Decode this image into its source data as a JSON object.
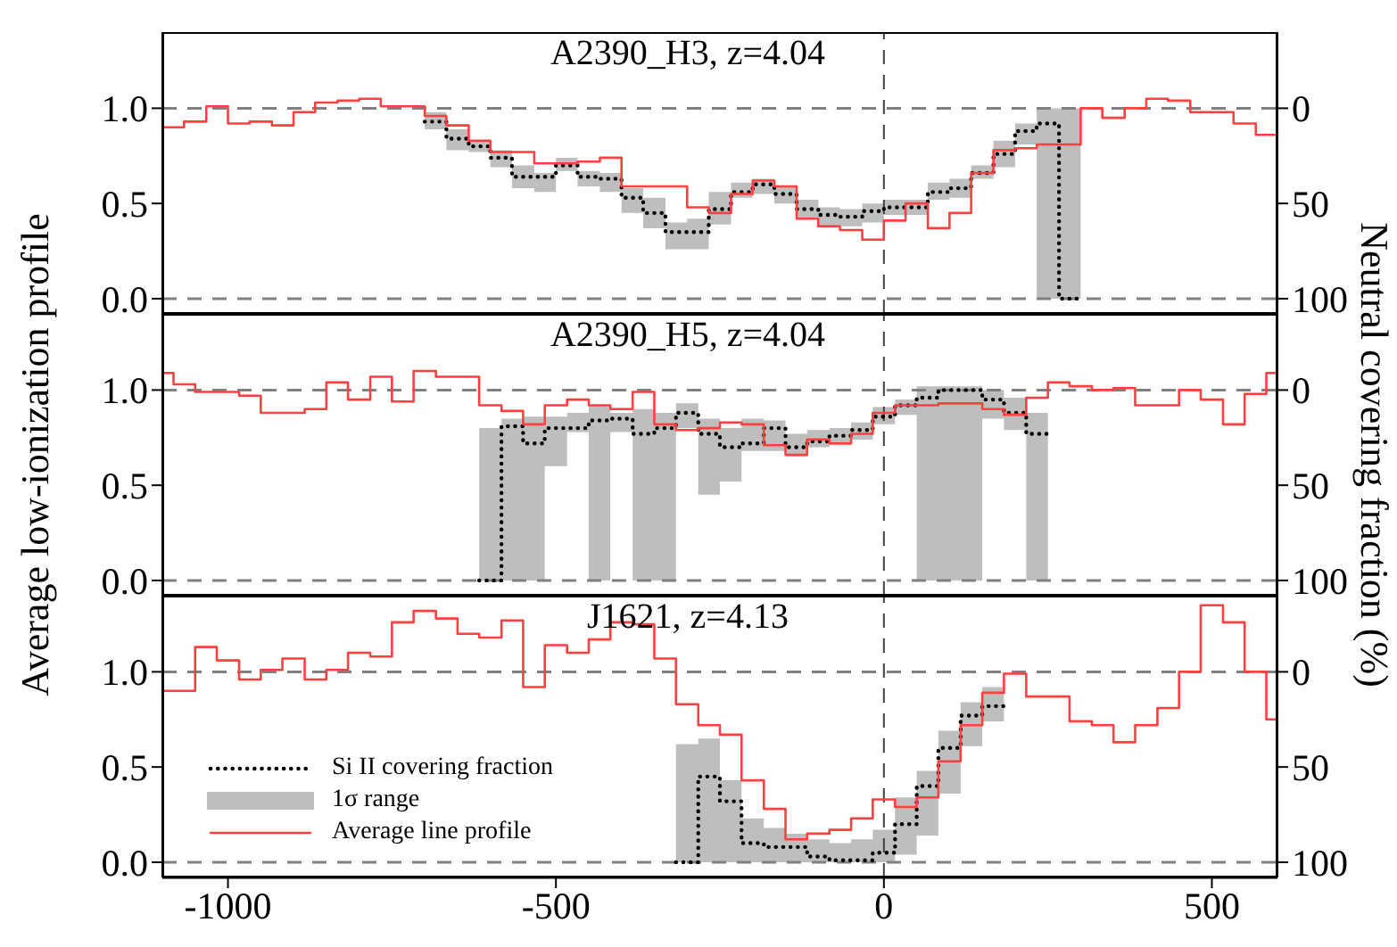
{
  "chart_data": [
    {
      "type": "step",
      "title": "A2390_H3, z=4.04",
      "tick_labels": "y",
      "xlim": [
        -1100,
        600
      ],
      "xticks": [
        -1000,
        -500,
        0,
        500
      ],
      "ylim": [
        -0.08,
        1.4
      ],
      "yticks": [
        {
          "value": 0,
          "label": "0.0"
        },
        {
          "value": 0.5,
          "label": "0.5"
        },
        {
          "value": 1,
          "label": "1.0"
        }
      ],
      "y2lim": [
        108,
        -40
      ],
      "y2ticks": [
        0,
        50,
        100
      ],
      "ref_lines": [
        {
          "axis": "y",
          "value": 0,
          "color": "#808080",
          "line_style": "dashed"
        },
        {
          "axis": "y",
          "value": 1,
          "color": "#808080",
          "line_style": "dashed"
        },
        {
          "axis": "x",
          "value": 0,
          "color": "#404040",
          "line_style": "dashed"
        }
      ],
      "x": [
        -1100,
        -1067,
        -1033,
        -1000,
        -967,
        -933,
        -900,
        -867,
        -833,
        -800,
        -767,
        -733,
        -700,
        -667,
        -633,
        -600,
        -567,
        -533,
        -500,
        -467,
        -433,
        -400,
        -367,
        -333,
        -300,
        -267,
        -233,
        -200,
        -167,
        -133,
        -100,
        -67,
        -33,
        0,
        33,
        67,
        100,
        133,
        167,
        200,
        233,
        267,
        300,
        333,
        367,
        400,
        433,
        467,
        500,
        533,
        567,
        600
      ],
      "series": [
        {
          "color": "#000000",
          "line_style": "dotted",
          "values": [
            null,
            null,
            null,
            null,
            null,
            null,
            null,
            null,
            null,
            null,
            null,
            null,
            0.93,
            0.84,
            0.8,
            0.74,
            0.64,
            0.64,
            0.7,
            0.64,
            0.63,
            0.53,
            0.45,
            0.35,
            0.35,
            0.47,
            0.56,
            0.6,
            0.55,
            0.47,
            0.44,
            0.43,
            0.46,
            0.48,
            0.48,
            0.56,
            0.58,
            0.66,
            0.76,
            0.88,
            0.92,
            0.0,
            0.0,
            null,
            null,
            null,
            null,
            null,
            null,
            null,
            null,
            null
          ],
          "lower": [
            null,
            null,
            null,
            null,
            null,
            null,
            null,
            null,
            null,
            null,
            null,
            null,
            0.89,
            0.78,
            0.77,
            0.69,
            0.58,
            0.56,
            0.67,
            0.59,
            0.56,
            0.45,
            0.37,
            0.26,
            0.26,
            0.39,
            0.53,
            0.55,
            0.5,
            0.42,
            0.38,
            0.38,
            0.4,
            0.44,
            0.44,
            0.52,
            0.53,
            0.63,
            0.69,
            0.81,
            0.0,
            0.0,
            0.0,
            null,
            null,
            null,
            null,
            null,
            null,
            null,
            null,
            null
          ],
          "upper": [
            null,
            null,
            null,
            null,
            null,
            null,
            null,
            null,
            null,
            null,
            null,
            null,
            0.98,
            0.89,
            0.83,
            0.78,
            0.7,
            0.66,
            0.74,
            0.67,
            0.66,
            0.58,
            0.53,
            0.4,
            0.42,
            0.56,
            0.61,
            0.63,
            0.59,
            0.52,
            0.48,
            0.47,
            0.5,
            0.52,
            0.52,
            0.61,
            0.63,
            0.7,
            0.83,
            0.92,
            1.0,
            1.0,
            1.0,
            null,
            null,
            null,
            null,
            null,
            null,
            null,
            null,
            null
          ]
        },
        {
          "color": "#ff4040",
          "line_style": "solid",
          "values": [
            0.9,
            0.93,
            1.01,
            0.92,
            0.93,
            0.91,
            0.98,
            1.03,
            1.04,
            1.05,
            1.01,
            1.01,
            0.96,
            0.91,
            0.83,
            0.77,
            0.77,
            0.71,
            0.71,
            0.72,
            0.74,
            0.59,
            0.59,
            0.59,
            0.48,
            0.45,
            0.55,
            0.62,
            0.59,
            0.42,
            0.38,
            0.36,
            0.31,
            0.41,
            0.5,
            0.37,
            0.45,
            0.66,
            0.78,
            0.79,
            0.81,
            0.81,
            1.0,
            0.95,
            1.0,
            1.05,
            1.04,
            0.98,
            0.98,
            0.92,
            0.86,
            0.86
          ]
        }
      ]
    },
    {
      "type": "step",
      "title": "A2390_H5, z=4.04",
      "ylabel": "Average low-ionization profile",
      "y2label": "Neutral covering fraction (%)",
      "tick_labels": "y",
      "xlim": [
        -1100,
        600
      ],
      "xticks": [
        -1000,
        -500,
        0,
        500
      ],
      "ylim": [
        -0.08,
        1.4
      ],
      "yticks": [
        {
          "value": 0,
          "label": "0.0"
        },
        {
          "value": 0.5,
          "label": "0.5"
        },
        {
          "value": 1,
          "label": "1.0"
        }
      ],
      "y2lim": [
        108,
        -40
      ],
      "y2ticks": [
        0,
        50,
        100
      ],
      "ref_lines": [
        {
          "axis": "y",
          "value": 0,
          "color": "#808080",
          "line_style": "dashed"
        },
        {
          "axis": "y",
          "value": 1,
          "color": "#808080",
          "line_style": "dashed"
        },
        {
          "axis": "x",
          "value": 0,
          "color": "#404040",
          "line_style": "dashed"
        }
      ],
      "x": [
        -1100,
        -1083,
        -1050,
        -1017,
        -983,
        -950,
        -917,
        -883,
        -850,
        -817,
        -783,
        -750,
        -717,
        -683,
        -650,
        -617,
        -583,
        -550,
        -517,
        -483,
        -450,
        -417,
        -383,
        -350,
        -317,
        -283,
        -250,
        -217,
        -183,
        -150,
        -117,
        -83,
        -50,
        -17,
        17,
        50,
        83,
        117,
        150,
        183,
        217,
        250,
        283,
        317,
        350,
        383,
        417,
        450,
        483,
        517,
        550,
        583,
        600
      ],
      "series": [
        {
          "color": "#000000",
          "line_style": "dotted",
          "values": [
            null,
            null,
            null,
            null,
            null,
            null,
            null,
            null,
            null,
            null,
            null,
            null,
            null,
            null,
            null,
            0.0,
            0.81,
            0.72,
            0.8,
            0.8,
            0.84,
            0.85,
            0.77,
            0.8,
            0.88,
            0.77,
            0.7,
            0.72,
            0.8,
            0.7,
            0.73,
            0.76,
            0.79,
            0.86,
            0.92,
            0.96,
            1.0,
            1.0,
            0.95,
            0.88,
            0.77,
            0.77,
            null,
            null,
            null,
            null,
            null,
            null,
            null,
            null,
            null,
            null,
            null
          ],
          "lower": [
            null,
            null,
            null,
            null,
            null,
            null,
            null,
            null,
            null,
            null,
            null,
            null,
            null,
            null,
            null,
            0,
            0,
            0,
            0.6,
            0.78,
            0,
            0.78,
            0,
            0,
            0.8,
            0.45,
            0.52,
            0.68,
            0.68,
            0.65,
            0.7,
            0.71,
            0.74,
            0.82,
            0.87,
            0,
            0,
            0,
            0.85,
            0.79,
            0,
            0,
            null,
            null,
            null,
            null,
            null,
            null,
            null,
            null,
            null,
            null,
            null
          ],
          "upper": [
            null,
            null,
            null,
            null,
            null,
            null,
            null,
            null,
            null,
            null,
            null,
            null,
            null,
            null,
            null,
            0.8,
            0.85,
            0.86,
            0.86,
            0.88,
            0.92,
            0.88,
            0.9,
            0.88,
            0.93,
            0.85,
            0.8,
            0.85,
            0.84,
            0.77,
            0.79,
            0.8,
            0.83,
            0.91,
            0.95,
            1.02,
            1.02,
            1.02,
            1.0,
            0.96,
            0.88,
            0.88,
            null,
            null,
            null,
            null,
            null,
            null,
            null,
            null,
            null,
            null,
            null
          ]
        },
        {
          "color": "#ff4040",
          "line_style": "solid",
          "values": [
            1.09,
            1.03,
            0.99,
            0.99,
            0.97,
            0.88,
            0.88,
            0.9,
            1.04,
            0.95,
            1.07,
            0.94,
            1.1,
            1.07,
            1.07,
            0.92,
            0.89,
            0.82,
            0.92,
            0.95,
            0.92,
            0.9,
            0.99,
            0.82,
            0.79,
            0.8,
            0.83,
            0.82,
            0.71,
            0.66,
            0.74,
            0.72,
            0.77,
            0.88,
            0.92,
            0.92,
            0.93,
            0.93,
            0.9,
            0.87,
            0.96,
            1.04,
            1.02,
            1.0,
            1.01,
            0.92,
            0.92,
            1.0,
            0.95,
            0.82,
            0.98,
            1.09,
            1.09
          ]
        }
      ]
    },
    {
      "type": "step",
      "title": "J1621, z=4.13",
      "legend": "bottom left",
      "annotations": [
        "1σ range"
      ],
      "xlim": [
        -1100,
        600
      ],
      "xticks": [
        -1000,
        -500,
        0,
        500
      ],
      "ylim": [
        -0.08,
        1.4
      ],
      "yticks": [
        {
          "value": 0,
          "label": "0.0"
        },
        {
          "value": 0.5,
          "label": "0.5"
        },
        {
          "value": 1,
          "label": "1.0"
        }
      ],
      "y2lim": [
        108,
        -40
      ],
      "y2ticks": [
        0,
        50,
        100
      ],
      "ref_lines": [
        {
          "axis": "y",
          "value": 0,
          "color": "#808080",
          "line_style": "dashed"
        },
        {
          "axis": "y",
          "value": 1,
          "color": "#808080",
          "line_style": "dashed"
        },
        {
          "axis": "x",
          "value": 0,
          "color": "#404040",
          "line_style": "dashed"
        }
      ],
      "x": [
        -1100,
        -1083,
        -1050,
        -1017,
        -983,
        -950,
        -917,
        -883,
        -850,
        -817,
        -783,
        -750,
        -717,
        -683,
        -650,
        -617,
        -583,
        -550,
        -517,
        -483,
        -450,
        -417,
        -383,
        -350,
        -317,
        -283,
        -250,
        -217,
        -183,
        -150,
        -117,
        -83,
        -50,
        -17,
        17,
        50,
        83,
        117,
        150,
        183,
        217,
        250,
        283,
        317,
        350,
        383,
        417,
        450,
        483,
        517,
        550,
        583,
        600
      ],
      "series": [
        {
          "name": "Si II covering fraction",
          "color": "#000000",
          "line_style": "dotted",
          "values": [
            null,
            null,
            null,
            null,
            null,
            null,
            null,
            null,
            null,
            null,
            null,
            null,
            null,
            null,
            null,
            null,
            null,
            null,
            null,
            null,
            null,
            null,
            null,
            null,
            0.0,
            0.45,
            0.32,
            0.1,
            0.08,
            0.08,
            0.03,
            0.01,
            0.01,
            0.05,
            0.2,
            0.4,
            0.6,
            0.77,
            0.82,
            0.82,
            null,
            null,
            null,
            null,
            null,
            null,
            null,
            null,
            null,
            null,
            null,
            null,
            null
          ],
          "lower": [
            null,
            null,
            null,
            null,
            null,
            null,
            null,
            null,
            null,
            null,
            null,
            null,
            null,
            null,
            null,
            null,
            null,
            null,
            null,
            null,
            null,
            null,
            null,
            null,
            0,
            0,
            0,
            0,
            0,
            0,
            0,
            0,
            0,
            0,
            0.04,
            0.14,
            0.36,
            0.61,
            0.74,
            0.74,
            null,
            null,
            null,
            null,
            null,
            null,
            null,
            null,
            null,
            null,
            null,
            null,
            null
          ],
          "upper": [
            null,
            null,
            null,
            null,
            null,
            null,
            null,
            null,
            null,
            null,
            null,
            null,
            null,
            null,
            null,
            null,
            null,
            null,
            null,
            null,
            null,
            null,
            null,
            null,
            0.62,
            0.65,
            0.43,
            0.23,
            0.18,
            0.15,
            0.12,
            0.1,
            0.12,
            0.17,
            0.34,
            0.48,
            0.69,
            0.84,
            0.92,
            0.92,
            null,
            null,
            null,
            null,
            null,
            null,
            null,
            null,
            null,
            null,
            null,
            null,
            null
          ]
        },
        {
          "name": "Average line profile",
          "color": "#ff4040",
          "line_style": "solid",
          "values": [
            0.9,
            0.9,
            1.13,
            1.06,
            0.96,
            1.01,
            1.07,
            0.96,
            1.01,
            1.1,
            1.08,
            1.26,
            1.32,
            1.28,
            1.2,
            1.18,
            1.27,
            0.92,
            1.14,
            1.1,
            1.17,
            1.26,
            1.25,
            1.07,
            0.83,
            0.72,
            0.67,
            0.43,
            0.28,
            0.12,
            0.15,
            0.17,
            0.23,
            0.33,
            0.29,
            0.34,
            0.53,
            0.72,
            0.89,
            0.99,
            0.87,
            0.87,
            0.74,
            0.72,
            0.63,
            0.72,
            0.81,
            1.0,
            1.35,
            1.26,
            1.0,
            0.75,
            0.75
          ]
        }
      ]
    }
  ]
}
